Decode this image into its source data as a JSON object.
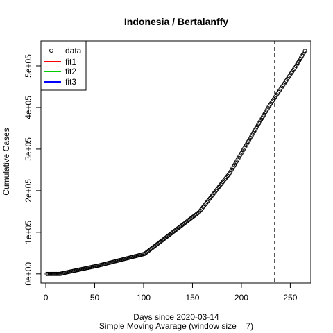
{
  "chart_data": {
    "type": "scatter",
    "title": "Indonesia / Bertalanffy",
    "xlabel": "Days since 2020-03-14",
    "subtitle": "Simple Moving Avarage (window size = 7)",
    "ylabel": "Cumulative Cases",
    "xlim": [
      -5,
      271
    ],
    "ylim": [
      -22000,
      560000
    ],
    "x_ticks": [
      0,
      50,
      100,
      150,
      200,
      250
    ],
    "x_tick_labels": [
      "0",
      "50",
      "100",
      "150",
      "200",
      "250"
    ],
    "y_ticks": [
      0,
      100000,
      200000,
      300000,
      400000,
      500000
    ],
    "y_tick_labels": [
      "0e+00",
      "1e+05",
      "2e+05",
      "3e+05",
      "4e+05",
      "5e+05"
    ],
    "vline_x": 234,
    "vline_style": "dashed",
    "legend": {
      "position": "top-left",
      "entries": [
        {
          "label": "data",
          "symbol": "circle",
          "color": "#000000"
        },
        {
          "label": "fit1",
          "symbol": "line",
          "color": "#ff0000"
        },
        {
          "label": "fit2",
          "symbol": "line",
          "color": "#00cd00"
        },
        {
          "label": "fit3",
          "symbol": "line",
          "color": "#0000ff"
        }
      ]
    },
    "series": [
      {
        "name": "data",
        "x_start": 1,
        "x_step": 1,
        "values": [
          0,
          0,
          0,
          0,
          0,
          0,
          0,
          0,
          0,
          0,
          0,
          0,
          0,
          0,
          0,
          1000,
          1500,
          2000,
          2500,
          3000,
          3500,
          4000,
          4500,
          5000,
          5500,
          6000,
          6500,
          7000,
          7500,
          8000,
          8500,
          9000,
          9500,
          10000,
          10500,
          11000,
          11500,
          12000,
          12500,
          13000,
          13500,
          14000,
          14500,
          15000,
          15500,
          16000,
          16500,
          17000,
          17500,
          18000,
          18500,
          19000,
          19500,
          20000,
          20600,
          21200,
          21800,
          22400,
          23000,
          23600,
          24200,
          24800,
          25400,
          26000,
          26600,
          27200,
          27800,
          28400,
          29000,
          29600,
          30200,
          30800,
          31400,
          32000,
          32600,
          33200,
          33800,
          34400,
          35000,
          35600,
          36200,
          36800,
          37400,
          38000,
          38600,
          39200,
          39800,
          40400,
          41000,
          41600,
          42200,
          42800,
          43400,
          44000,
          44600,
          45200,
          45800,
          46400,
          47000,
          47600,
          48200,
          50000,
          51800,
          53600,
          55400,
          57200,
          59000,
          60800,
          62600,
          64400,
          66200,
          68000,
          69800,
          71600,
          73400,
          75200,
          77000,
          78800,
          80600,
          82400,
          84200,
          86000,
          87800,
          89600,
          91400,
          93200,
          95000,
          96800,
          98600,
          100400,
          102200,
          104000,
          105800,
          107600,
          109400,
          111200,
          113000,
          114800,
          116600,
          118400,
          120200,
          122000,
          123800,
          125600,
          127400,
          129200,
          131000,
          132800,
          134600,
          136400,
          138200,
          140000,
          141800,
          143600,
          145400,
          147200,
          149000,
          152000,
          155000,
          158000,
          161000,
          164000,
          167000,
          170000,
          173000,
          176000,
          179000,
          182000,
          185000,
          188000,
          191000,
          194000,
          197000,
          200000,
          203000,
          206000,
          209000,
          212000,
          215000,
          218000,
          221000,
          224000,
          227000,
          230000,
          233000,
          236000,
          239000,
          242000,
          246000,
          250000,
          254000,
          258000,
          262000,
          266000,
          270000,
          274000,
          278000,
          282000,
          286000,
          290000,
          294000,
          298000,
          302000,
          306000,
          310000,
          314000,
          318000,
          322000,
          326000,
          330000,
          334000,
          338000,
          342000,
          346000,
          350000,
          354000,
          358000,
          362000,
          366000,
          370000,
          374000,
          378000,
          382000,
          386000,
          390000,
          394000,
          398000,
          402000,
          405500,
          409000,
          412500,
          416000,
          419500,
          423000,
          426500,
          430000,
          433500,
          437000,
          440500,
          444000,
          447500,
          451000,
          454500,
          458000,
          461500,
          465000,
          468500,
          472000,
          475500,
          479000,
          482500,
          486000,
          489500,
          493000,
          496500,
          500000,
          504000,
          508000,
          512000,
          516000,
          520000,
          524000,
          528000,
          532000,
          536000
        ]
      }
    ]
  }
}
